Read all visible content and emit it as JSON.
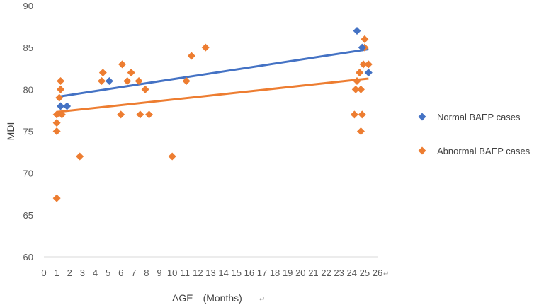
{
  "chart_data": {
    "type": "scatter",
    "xlabel": "AGE　(Months)",
    "ylabel": "MDI",
    "ylim": [
      60,
      90
    ],
    "yticks": [
      60,
      65,
      70,
      75,
      80,
      85,
      90
    ],
    "xticks": [
      "0",
      "1",
      "2",
      "3",
      "4",
      "5",
      "6",
      "7",
      "8",
      "9",
      "10",
      "11",
      "12",
      "13",
      "14",
      "15",
      "16",
      "17",
      "18",
      "19",
      "20",
      "21",
      "22",
      "23",
      "24",
      "25",
      "26"
    ],
    "grid": false,
    "legend_position": "right",
    "series": [
      {
        "name": "Normal BAEP cases",
        "color": "#4472C4",
        "points": [
          {
            "x": 1.3,
            "y": 78
          },
          {
            "x": 1.8,
            "y": 78
          },
          {
            "x": 5.1,
            "y": 81
          },
          {
            "x": 24.4,
            "y": 87
          },
          {
            "x": 24.8,
            "y": 85
          },
          {
            "x": 25.3,
            "y": 82
          }
        ],
        "trendline": {
          "x": [
            1.0,
            25.3
          ],
          "y": [
            79.1,
            84.8
          ]
        }
      },
      {
        "name": "Abnormal BAEP cases",
        "color": "#ED7D31",
        "points": [
          {
            "x": 1.0,
            "y": 67
          },
          {
            "x": 1.0,
            "y": 75
          },
          {
            "x": 1.0,
            "y": 76
          },
          {
            "x": 1.0,
            "y": 77
          },
          {
            "x": 1.2,
            "y": 79
          },
          {
            "x": 1.3,
            "y": 80
          },
          {
            "x": 1.3,
            "y": 81
          },
          {
            "x": 1.4,
            "y": 77
          },
          {
            "x": 2.8,
            "y": 72
          },
          {
            "x": 4.5,
            "y": 81
          },
          {
            "x": 4.6,
            "y": 82
          },
          {
            "x": 6.0,
            "y": 77
          },
          {
            "x": 6.1,
            "y": 83
          },
          {
            "x": 6.5,
            "y": 81
          },
          {
            "x": 6.8,
            "y": 82
          },
          {
            "x": 7.4,
            "y": 81
          },
          {
            "x": 7.5,
            "y": 77
          },
          {
            "x": 7.9,
            "y": 80
          },
          {
            "x": 8.2,
            "y": 77
          },
          {
            "x": 10.0,
            "y": 72
          },
          {
            "x": 11.1,
            "y": 81
          },
          {
            "x": 11.5,
            "y": 84
          },
          {
            "x": 12.6,
            "y": 85
          },
          {
            "x": 24.2,
            "y": 77
          },
          {
            "x": 24.3,
            "y": 80
          },
          {
            "x": 24.4,
            "y": 81
          },
          {
            "x": 24.6,
            "y": 82
          },
          {
            "x": 24.7,
            "y": 80
          },
          {
            "x": 24.7,
            "y": 75
          },
          {
            "x": 24.8,
            "y": 77
          },
          {
            "x": 24.9,
            "y": 83
          },
          {
            "x": 25.0,
            "y": 86
          },
          {
            "x": 25.0,
            "y": 85
          },
          {
            "x": 25.3,
            "y": 83
          }
        ],
        "trendline": {
          "x": [
            1.0,
            25.3
          ],
          "y": [
            77.3,
            81.3
          ]
        }
      }
    ],
    "annotations": [
      "↵"
    ]
  }
}
